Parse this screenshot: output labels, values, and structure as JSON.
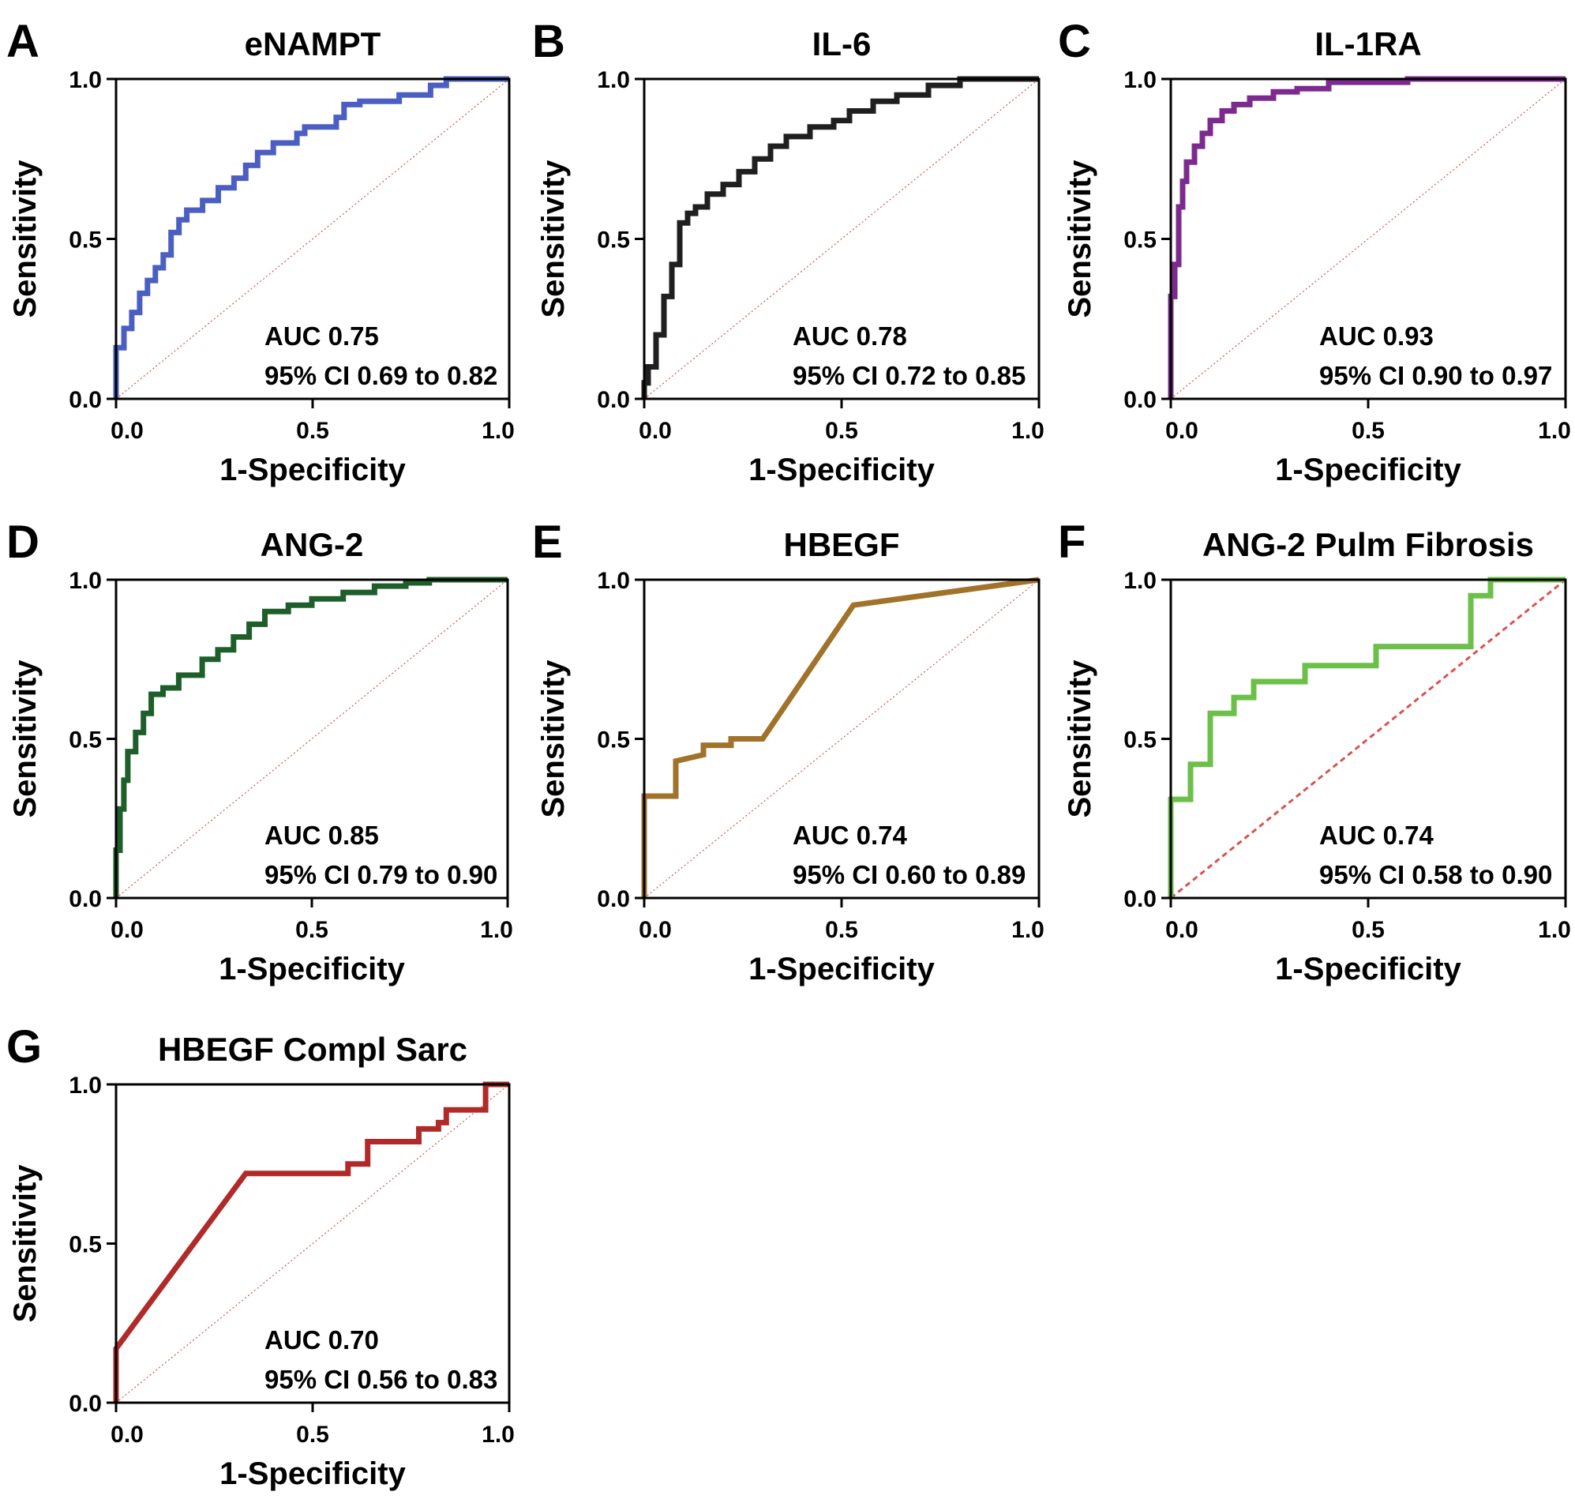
{
  "chart_data": [
    {
      "type": "line",
      "panel": "A",
      "title": "eNAMPT",
      "xlabel": "1-Specificity",
      "ylabel": "Sensitivity",
      "xlim": [
        0,
        1
      ],
      "ylim": [
        0,
        1
      ],
      "xticks": [
        "0.0",
        "0.5",
        "1.0"
      ],
      "yticks": [
        "0.0",
        "0.5",
        "1.0"
      ],
      "color": "#4a5fc1",
      "auc": "AUC 0.75",
      "ci": "95% CI 0.69 to 0.82",
      "series": [
        {
          "name": "eNAMPT",
          "x": [
            0,
            0,
            0.02,
            0.02,
            0.04,
            0.04,
            0.06,
            0.06,
            0.08,
            0.08,
            0.1,
            0.1,
            0.12,
            0.12,
            0.14,
            0.14,
            0.16,
            0.16,
            0.18,
            0.18,
            0.22,
            0.22,
            0.26,
            0.26,
            0.3,
            0.3,
            0.33,
            0.33,
            0.36,
            0.36,
            0.4,
            0.4,
            0.46,
            0.46,
            0.48,
            0.48,
            0.56,
            0.56,
            0.58,
            0.58,
            0.62,
            0.62,
            0.72,
            0.72,
            0.8,
            0.8,
            0.84,
            0.84,
            1.0
          ],
          "y": [
            0,
            0.16,
            0.16,
            0.22,
            0.22,
            0.27,
            0.27,
            0.33,
            0.33,
            0.37,
            0.37,
            0.41,
            0.41,
            0.45,
            0.45,
            0.52,
            0.52,
            0.56,
            0.56,
            0.59,
            0.59,
            0.62,
            0.62,
            0.66,
            0.66,
            0.69,
            0.69,
            0.73,
            0.73,
            0.77,
            0.77,
            0.8,
            0.8,
            0.83,
            0.83,
            0.85,
            0.85,
            0.88,
            0.88,
            0.92,
            0.92,
            0.93,
            0.93,
            0.95,
            0.95,
            0.98,
            0.98,
            1.0,
            1.0
          ]
        }
      ]
    },
    {
      "type": "line",
      "panel": "B",
      "title": "IL-6",
      "xlabel": "1-Specificity",
      "ylabel": "Sensitivity",
      "xlim": [
        0,
        1
      ],
      "ylim": [
        0,
        1
      ],
      "xticks": [
        "0.0",
        "0.5",
        "1.0"
      ],
      "yticks": [
        "0.0",
        "0.5",
        "1.0"
      ],
      "color": "#1f1f1f",
      "auc": "AUC 0.78",
      "ci": "95% CI 0.72 to 0.85",
      "series": [
        {
          "name": "IL-6",
          "x": [
            0,
            0,
            0.01,
            0.01,
            0.03,
            0.03,
            0.05,
            0.05,
            0.07,
            0.07,
            0.09,
            0.09,
            0.11,
            0.11,
            0.13,
            0.13,
            0.16,
            0.16,
            0.2,
            0.2,
            0.24,
            0.24,
            0.28,
            0.28,
            0.32,
            0.32,
            0.36,
            0.36,
            0.42,
            0.42,
            0.48,
            0.48,
            0.52,
            0.52,
            0.58,
            0.58,
            0.64,
            0.64,
            0.72,
            0.72,
            0.8,
            0.8,
            1.0
          ],
          "y": [
            0,
            0.05,
            0.05,
            0.1,
            0.1,
            0.2,
            0.2,
            0.32,
            0.32,
            0.42,
            0.42,
            0.55,
            0.55,
            0.58,
            0.58,
            0.6,
            0.6,
            0.64,
            0.64,
            0.67,
            0.67,
            0.71,
            0.71,
            0.75,
            0.75,
            0.79,
            0.79,
            0.82,
            0.82,
            0.85,
            0.85,
            0.87,
            0.87,
            0.9,
            0.9,
            0.93,
            0.93,
            0.95,
            0.95,
            0.98,
            0.98,
            1.0,
            1.0
          ]
        }
      ]
    },
    {
      "type": "line",
      "panel": "C",
      "title": "IL-1RA",
      "xlabel": "1-Specificity",
      "ylabel": "Sensitivity",
      "xlim": [
        0,
        1
      ],
      "ylim": [
        0,
        1
      ],
      "xticks": [
        "0.0",
        "0.5",
        "1.0"
      ],
      "yticks": [
        "0.0",
        "0.5",
        "1.0"
      ],
      "color": "#7d2a8f",
      "auc": "AUC 0.93",
      "ci": "95% CI 0.90 to 0.97",
      "series": [
        {
          "name": "IL-1RA",
          "x": [
            0,
            0,
            0.01,
            0.01,
            0.02,
            0.02,
            0.03,
            0.03,
            0.04,
            0.04,
            0.06,
            0.06,
            0.08,
            0.08,
            0.1,
            0.1,
            0.13,
            0.13,
            0.16,
            0.16,
            0.2,
            0.2,
            0.26,
            0.26,
            0.32,
            0.32,
            0.4,
            0.4,
            0.6,
            0.6,
            1.0
          ],
          "y": [
            0,
            0.32,
            0.32,
            0.42,
            0.42,
            0.6,
            0.6,
            0.68,
            0.68,
            0.74,
            0.74,
            0.79,
            0.79,
            0.83,
            0.83,
            0.87,
            0.87,
            0.9,
            0.9,
            0.92,
            0.92,
            0.94,
            0.94,
            0.96,
            0.96,
            0.97,
            0.97,
            0.99,
            0.99,
            1.0,
            1.0
          ]
        }
      ]
    },
    {
      "type": "line",
      "panel": "D",
      "title": "ANG-2",
      "xlabel": "1-Specificity",
      "ylabel": "Sensitivity",
      "xlim": [
        0,
        1
      ],
      "ylim": [
        0,
        1
      ],
      "xticks": [
        "0.0",
        "0.5",
        "1.0"
      ],
      "yticks": [
        "0.0",
        "0.5",
        "1.0"
      ],
      "color": "#1e5e2a",
      "auc": "AUC 0.85",
      "ci": "95% CI 0.79 to 0.90",
      "series": [
        {
          "name": "ANG-2",
          "x": [
            0,
            0,
            0.01,
            0.01,
            0.02,
            0.02,
            0.03,
            0.03,
            0.05,
            0.05,
            0.07,
            0.07,
            0.09,
            0.09,
            0.12,
            0.12,
            0.16,
            0.16,
            0.22,
            0.22,
            0.26,
            0.26,
            0.3,
            0.3,
            0.34,
            0.34,
            0.38,
            0.38,
            0.44,
            0.44,
            0.5,
            0.5,
            0.58,
            0.58,
            0.66,
            0.66,
            0.74,
            0.74,
            0.8,
            0.8,
            1.0
          ],
          "y": [
            0,
            0.15,
            0.15,
            0.28,
            0.28,
            0.37,
            0.37,
            0.46,
            0.46,
            0.52,
            0.52,
            0.58,
            0.58,
            0.64,
            0.64,
            0.66,
            0.66,
            0.7,
            0.7,
            0.75,
            0.75,
            0.78,
            0.78,
            0.82,
            0.82,
            0.86,
            0.86,
            0.9,
            0.9,
            0.92,
            0.92,
            0.94,
            0.94,
            0.96,
            0.96,
            0.98,
            0.98,
            0.99,
            0.99,
            1.0,
            1.0
          ]
        }
      ]
    },
    {
      "type": "line",
      "panel": "E",
      "title": "HBEGF",
      "xlabel": "1-Specificity",
      "ylabel": "Sensitivity",
      "xlim": [
        0,
        1
      ],
      "ylim": [
        0,
        1
      ],
      "xticks": [
        "0.0",
        "0.5",
        "1.0"
      ],
      "yticks": [
        "0.0",
        "0.5",
        "1.0"
      ],
      "color": "#a0722a",
      "auc": "AUC 0.74",
      "ci": "95% CI 0.60 to 0.89",
      "series": [
        {
          "name": "HBEGF",
          "x": [
            0,
            0,
            0.08,
            0.08,
            0.15,
            0.15,
            0.22,
            0.22,
            0.3,
            0.53,
            1.0
          ],
          "y": [
            0,
            0.32,
            0.32,
            0.43,
            0.45,
            0.48,
            0.48,
            0.5,
            0.5,
            0.92,
            1.0
          ]
        }
      ]
    },
    {
      "type": "line",
      "panel": "F",
      "title": "ANG-2 Pulm Fibrosis",
      "xlabel": "1-Specificity",
      "ylabel": "Sensitivity",
      "xlim": [
        0,
        1
      ],
      "ylim": [
        0,
        1
      ],
      "xticks": [
        "0.0",
        "0.5",
        "1.0"
      ],
      "yticks": [
        "0.0",
        "0.5",
        "1.0"
      ],
      "color": "#6cc04a",
      "auc": "AUC 0.74",
      "ci": "95% CI 0.58 to 0.90",
      "series": [
        {
          "name": "ANG-2 Pulm Fibrosis",
          "x": [
            0,
            0,
            0.05,
            0.05,
            0.1,
            0.1,
            0.16,
            0.16,
            0.21,
            0.21,
            0.34,
            0.34,
            0.52,
            0.52,
            0.76,
            0.76,
            0.81,
            0.81,
            1.0
          ],
          "y": [
            0,
            0.31,
            0.31,
            0.42,
            0.42,
            0.58,
            0.58,
            0.63,
            0.63,
            0.68,
            0.68,
            0.73,
            0.73,
            0.79,
            0.79,
            0.95,
            0.95,
            1.0,
            1.0
          ]
        }
      ]
    },
    {
      "type": "line",
      "panel": "G",
      "title": "HBEGF Compl Sarc",
      "xlabel": "1-Specificity",
      "ylabel": "Sensitivity",
      "xlim": [
        0,
        1
      ],
      "ylim": [
        0,
        1
      ],
      "xticks": [
        "0.0",
        "0.5",
        "1.0"
      ],
      "yticks": [
        "0.0",
        "0.5",
        "1.0"
      ],
      "color": "#b12a2a",
      "auc": "AUC 0.70",
      "ci": "95% CI 0.56 to 0.83",
      "series": [
        {
          "name": "HBEGF Compl Sarc",
          "x": [
            0,
            0,
            0.33,
            0.59,
            0.59,
            0.64,
            0.64,
            0.77,
            0.77,
            0.82,
            0.82,
            0.84,
            0.84,
            0.91,
            0.91,
            0.94,
            0.94,
            1.0
          ],
          "y": [
            0,
            0.17,
            0.72,
            0.72,
            0.75,
            0.75,
            0.82,
            0.82,
            0.86,
            0.86,
            0.88,
            0.88,
            0.92,
            0.92,
            0.92,
            0.92,
            1.0,
            1.0
          ]
        }
      ]
    }
  ]
}
